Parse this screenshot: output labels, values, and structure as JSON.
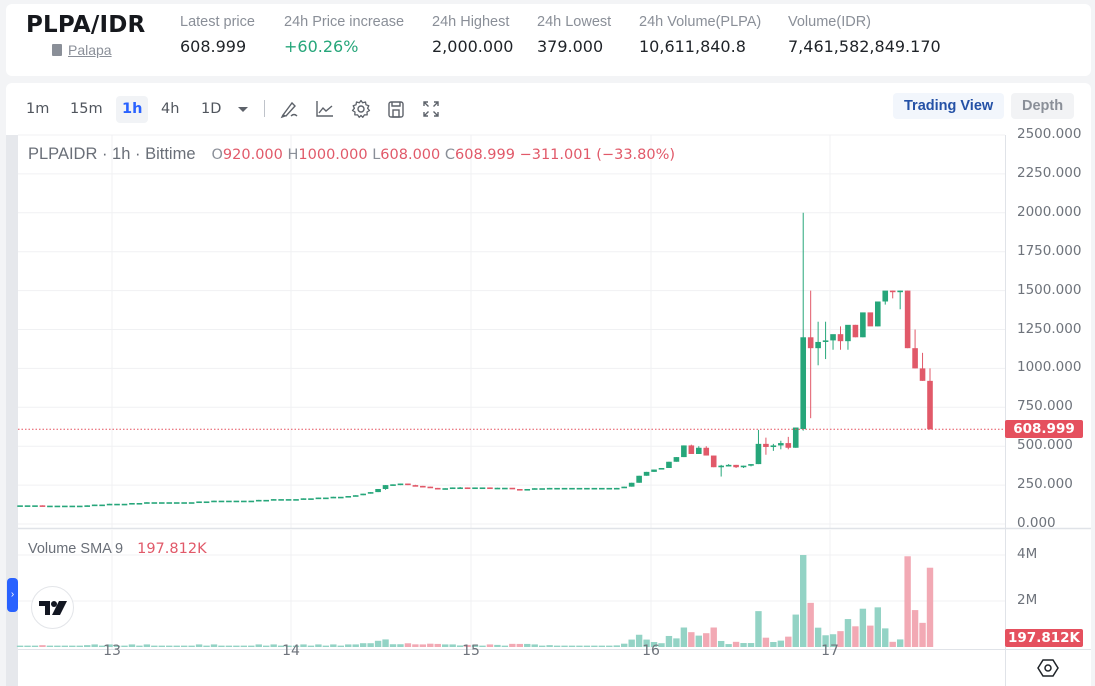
{
  "ticker": {
    "pair": "PLPA/IDR",
    "name": "Palapa",
    "stats": [
      {
        "label": "Latest price",
        "value": "608.999"
      },
      {
        "label": "24h Price increase",
        "value": "+60.26%"
      },
      {
        "label": "24h Highest",
        "value": "2,000.000"
      },
      {
        "label": "24h Lowest",
        "value": "379.000"
      },
      {
        "label": "24h Volume(PLPA)",
        "value": "10,611,840.8"
      },
      {
        "label": "Volume(IDR)",
        "value": "7,461,582,849.170"
      }
    ]
  },
  "toolbar": {
    "timeframes": [
      "1m",
      "15m",
      "1h",
      "4h",
      "1D"
    ],
    "active_timeframe": "1h",
    "icons": [
      "chevron-down-icon",
      "draw-icon",
      "indicator-icon",
      "gear-icon",
      "save-icon",
      "fullscreen-icon"
    ],
    "views": {
      "trading_view": "Trading View",
      "depth": "Depth"
    }
  },
  "legend": {
    "symbol": "PLPAIDR · 1h · Bittime",
    "o_key": "O",
    "o": "920.000",
    "h_key": "H",
    "h": "1000.000",
    "l_key": "L",
    "l": "608.000",
    "c_key": "C",
    "c": "608.999",
    "change": "−311.001 (−33.80%)",
    "volume_label": "Volume SMA 9",
    "volume_value": "197.812K"
  },
  "price_axis": {
    "labels": [
      "2500.000",
      "2250.000",
      "2000.000",
      "1750.000",
      "1500.000",
      "1250.000",
      "1000.000",
      "750.000",
      "500.000",
      "250.000",
      "0.000"
    ],
    "last_price_label": "608.999"
  },
  "volume_axis": {
    "labels": [
      "4M",
      "2M"
    ],
    "last_value_label": "197.812K"
  },
  "time_axis": {
    "labels": [
      "13",
      "14",
      "15",
      "16",
      "17"
    ]
  },
  "colors": {
    "up": "#26a67a",
    "down": "#e15969",
    "vol_up": "#93d3c5",
    "vol_down": "#f2a9b4",
    "accent": "#2962ff"
  },
  "chart_data": {
    "type": "candlestick",
    "title": "PLPAIDR · 1h · Bittime",
    "interval": "1h",
    "x_ticks": [
      "13",
      "14",
      "15",
      "16",
      "17"
    ],
    "ylim": [
      0,
      2500
    ],
    "y_ticks": [
      0,
      250,
      500,
      750,
      1000,
      1250,
      1500,
      1750,
      2000,
      2250,
      2500
    ],
    "last_price": 608.999,
    "last_candle": {
      "open": 920,
      "high": 1000,
      "low": 608,
      "close": 608.999
    },
    "volume_indicator": {
      "name": "Volume SMA 9",
      "value": "197.812K",
      "ylim": [
        0,
        4000000
      ],
      "y_ticks": [
        "2M",
        "4M"
      ]
    },
    "candles": [
      [
        100,
        100,
        100,
        100
      ],
      [
        100,
        100,
        100,
        100
      ],
      [
        100,
        100,
        100,
        100
      ],
      [
        100,
        100,
        100,
        100
      ],
      [
        100,
        100,
        100,
        100
      ],
      [
        100,
        100,
        100,
        100
      ],
      [
        100,
        100,
        100,
        100
      ],
      [
        100,
        100,
        100,
        100
      ],
      [
        100,
        105,
        100,
        105
      ],
      [
        105,
        105,
        105,
        105
      ],
      [
        105,
        110,
        105,
        110
      ],
      [
        110,
        110,
        110,
        110
      ],
      [
        110,
        115,
        110,
        115
      ],
      [
        115,
        115,
        115,
        115
      ],
      [
        115,
        120,
        115,
        120
      ],
      [
        120,
        120,
        120,
        120
      ],
      [
        120,
        120,
        120,
        120
      ],
      [
        120,
        120,
        120,
        120
      ],
      [
        120,
        120,
        120,
        120
      ],
      [
        120,
        120,
        120,
        120
      ],
      [
        120,
        120,
        120,
        120
      ],
      [
        120,
        120,
        120,
        120
      ],
      [
        120,
        120,
        120,
        120
      ],
      [
        120,
        120,
        120,
        120
      ],
      [
        120,
        120,
        118,
        118
      ],
      [
        118,
        118,
        118,
        118
      ],
      [
        118,
        118,
        118,
        118
      ],
      [
        118,
        118,
        118,
        118
      ],
      [
        118,
        118,
        118,
        118
      ],
      [
        118,
        118,
        118,
        118
      ],
      [
        118,
        120,
        118,
        120
      ],
      [
        120,
        125,
        120,
        125
      ],
      [
        125,
        125,
        125,
        125
      ],
      [
        125,
        130,
        125,
        130
      ],
      [
        130,
        130,
        130,
        130
      ],
      [
        130,
        130,
        130,
        130
      ],
      [
        130,
        135,
        130,
        135
      ],
      [
        135,
        135,
        135,
        135
      ],
      [
        135,
        140,
        135,
        140
      ],
      [
        140,
        140,
        140,
        140
      ],
      [
        140,
        140,
        140,
        140
      ],
      [
        140,
        140,
        140,
        140
      ],
      [
        140,
        140,
        140,
        140
      ],
      [
        140,
        140,
        140,
        140
      ],
      [
        140,
        140,
        140,
        140
      ],
      [
        140,
        145,
        140,
        145
      ],
      [
        145,
        145,
        145,
        145
      ],
      [
        145,
        150,
        145,
        150
      ],
      [
        150,
        150,
        150,
        150
      ],
      [
        150,
        150,
        150,
        150
      ],
      [
        150,
        150,
        150,
        150
      ],
      [
        150,
        150,
        150,
        150
      ],
      [
        150,
        150,
        150,
        150
      ],
      [
        150,
        155,
        150,
        155
      ],
      [
        155,
        155,
        155,
        155
      ],
      [
        155,
        160,
        155,
        160
      ],
      [
        160,
        160,
        160,
        160
      ],
      [
        160,
        160,
        160,
        160
      ],
      [
        160,
        160,
        160,
        160
      ],
      [
        160,
        165,
        160,
        165
      ],
      [
        165,
        165,
        165,
        165
      ],
      [
        165,
        170,
        165,
        170
      ],
      [
        170,
        170,
        170,
        170
      ],
      [
        170,
        175,
        170,
        175
      ],
      [
        175,
        175,
        175,
        175
      ],
      [
        175,
        180,
        175,
        180
      ],
      [
        180,
        185,
        180,
        185
      ],
      [
        185,
        195,
        185,
        195
      ],
      [
        195,
        205,
        195,
        205
      ],
      [
        205,
        225,
        205,
        225
      ],
      [
        225,
        250,
        220,
        250
      ],
      [
        250,
        255,
        245,
        255
      ],
      [
        255,
        260,
        250,
        260
      ],
      [
        260,
        258,
        250,
        250
      ],
      [
        250,
        252,
        245,
        245
      ],
      [
        245,
        245,
        240,
        240
      ],
      [
        240,
        240,
        232,
        232
      ],
      [
        232,
        232,
        225,
        225
      ],
      [
        225,
        230,
        225,
        230
      ],
      [
        230,
        235,
        230,
        235
      ],
      [
        235,
        238,
        233,
        235
      ],
      [
        235,
        235,
        232,
        232
      ],
      [
        232,
        235,
        232,
        235
      ],
      [
        235,
        235,
        235,
        235
      ],
      [
        235,
        235,
        230,
        230
      ],
      [
        230,
        233,
        230,
        233
      ],
      [
        233,
        233,
        233,
        233
      ],
      [
        233,
        228,
        225,
        225
      ],
      [
        225,
        225,
        218,
        218
      ],
      [
        218,
        225,
        218,
        225
      ],
      [
        225,
        230,
        225,
        230
      ],
      [
        230,
        230,
        230,
        230
      ],
      [
        230,
        232,
        230,
        232
      ],
      [
        232,
        232,
        232,
        232
      ],
      [
        232,
        232,
        232,
        232
      ],
      [
        232,
        232,
        232,
        232
      ],
      [
        232,
        232,
        232,
        232
      ],
      [
        232,
        232,
        232,
        232
      ],
      [
        232,
        232,
        232,
        232
      ],
      [
        232,
        232,
        232,
        232
      ],
      [
        232,
        232,
        232,
        232
      ],
      [
        232,
        232,
        225,
        232
      ],
      [
        232,
        240,
        232,
        240
      ],
      [
        240,
        265,
        240,
        265
      ],
      [
        265,
        310,
        265,
        310
      ],
      [
        310,
        335,
        310,
        335
      ],
      [
        335,
        350,
        335,
        350
      ],
      [
        350,
        360,
        350,
        360
      ],
      [
        360,
        400,
        360,
        400
      ],
      [
        400,
        430,
        400,
        430
      ],
      [
        430,
        505,
        430,
        505
      ],
      [
        505,
        510,
        450,
        450
      ],
      [
        450,
        500,
        450,
        490
      ],
      [
        490,
        500,
        440,
        440
      ],
      [
        440,
        440,
        365,
        365
      ],
      [
        365,
        380,
        305,
        375
      ],
      [
        375,
        385,
        370,
        380
      ],
      [
        380,
        380,
        360,
        365
      ],
      [
        365,
        375,
        360,
        375
      ],
      [
        375,
        385,
        370,
        385
      ],
      [
        385,
        605,
        385,
        515
      ],
      [
        515,
        555,
        445,
        495
      ],
      [
        495,
        515,
        470,
        505
      ],
      [
        505,
        535,
        480,
        520
      ],
      [
        520,
        560,
        480,
        490
      ],
      [
        490,
        610,
        490,
        620
      ],
      [
        610,
        2000,
        600,
        1200
      ],
      [
        1200,
        1500,
        680,
        1130
      ],
      [
        1130,
        1300,
        1020,
        1170
      ],
      [
        1170,
        1300,
        1060,
        1180
      ],
      [
        1180,
        1210,
        1120,
        1220
      ],
      [
        1220,
        1270,
        1120,
        1175
      ],
      [
        1175,
        1260,
        1120,
        1280
      ],
      [
        1280,
        1280,
        1200,
        1200
      ],
      [
        1200,
        1310,
        1200,
        1360
      ],
      [
        1360,
        1320,
        1280,
        1270
      ],
      [
        1270,
        1420,
        1270,
        1430
      ],
      [
        1430,
        1490,
        1410,
        1500
      ],
      [
        1500,
        1500,
        1450,
        1490
      ],
      [
        1490,
        1500,
        1380,
        1500
      ],
      [
        1500,
        1500,
        1130,
        1130
      ],
      [
        1130,
        1250,
        1000,
        1000
      ],
      [
        1000,
        1100,
        920,
        920
      ],
      [
        920,
        1000,
        608,
        609
      ]
    ],
    "volume_approx": "mostly under 500K per hour; peak ~4M around day 16 late; secondary spikes ~1M-1.6M"
  }
}
